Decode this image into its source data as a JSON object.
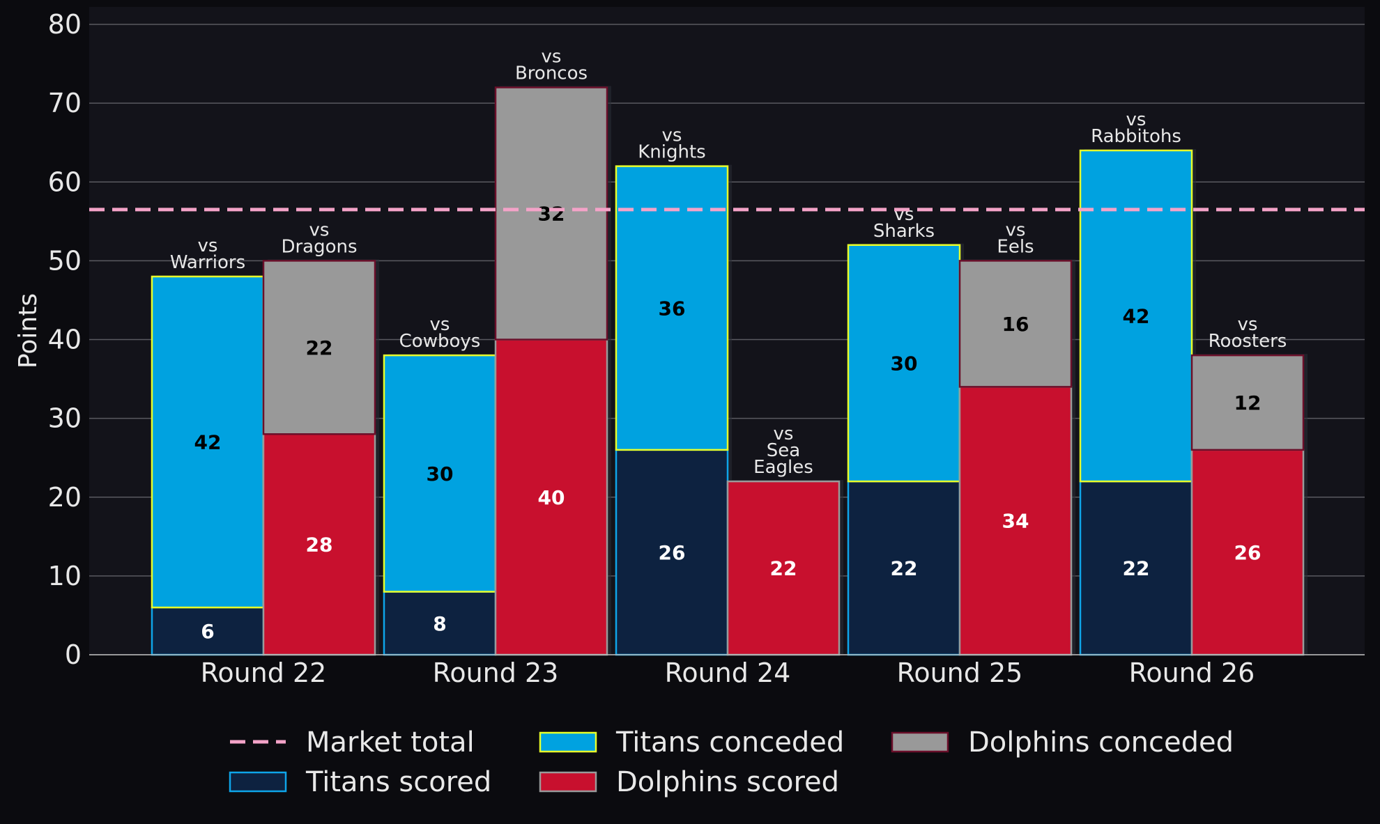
{
  "colors": {
    "page_bg": "#0b0b0f",
    "plot_bg": "#13131a",
    "grid": "#5a5a60",
    "text": "#e8e8e8",
    "titans_scored": "#0d2240",
    "titans_scored_edge": "#0ea5e9",
    "titans_conceded": "#00a2e0",
    "titans_conceded_edge": "#e8ff2a",
    "dolphins_scored": "#c8102e",
    "dolphins_scored_edge": "#9a9a9a",
    "dolphins_conceded": "#999999",
    "dolphins_conceded_edge": "#6b0f2a",
    "market_line": "#f4a3c8"
  },
  "chart_data": {
    "type": "bar",
    "stacked": true,
    "ylabel": "Points",
    "ylim": [
      0,
      80
    ],
    "yticks": [
      0,
      10,
      20,
      30,
      40,
      50,
      60,
      70,
      80
    ],
    "grid": true,
    "legend_placement": "bottom-center",
    "categories": [
      "Round 22",
      "Round 23",
      "Round 24",
      "Round 25",
      "Round 26"
    ],
    "series": [
      {
        "name": "Titans scored",
        "group": "Titans",
        "values": [
          6,
          8,
          26,
          22,
          22
        ]
      },
      {
        "name": "Titans conceded",
        "group": "Titans",
        "values": [
          42,
          30,
          36,
          30,
          42
        ]
      },
      {
        "name": "Dolphins scored",
        "group": "Dolphins",
        "values": [
          28,
          40,
          22,
          34,
          26
        ]
      },
      {
        "name": "Dolphins conceded",
        "group": "Dolphins",
        "values": [
          22,
          32,
          0,
          16,
          12
        ]
      }
    ],
    "opponents": {
      "Titans": [
        [
          "vs",
          "Warriors"
        ],
        [
          "vs",
          "Cowboys"
        ],
        [
          "vs",
          "Knights"
        ],
        [
          "vs",
          "Sharks"
        ],
        [
          "vs",
          "Rabbitohs"
        ]
      ],
      "Dolphins": [
        [
          "vs",
          "Dragons"
        ],
        [
          "vs",
          "Broncos"
        ],
        [
          "vs",
          "Sea",
          "Eagles"
        ],
        [
          "vs",
          "Eels"
        ],
        [
          "vs",
          "Roosters"
        ]
      ]
    },
    "reference_line": {
      "name": "Market total",
      "value": 56.5,
      "style": "dashed"
    },
    "legend": [
      {
        "label": "Market total",
        "kind": "line"
      },
      {
        "label": "Titans scored",
        "kind": "box"
      },
      {
        "label": "Titans conceded",
        "kind": "box"
      },
      {
        "label": "Dolphins scored",
        "kind": "box"
      },
      {
        "label": "Dolphins conceded",
        "kind": "box"
      }
    ]
  }
}
